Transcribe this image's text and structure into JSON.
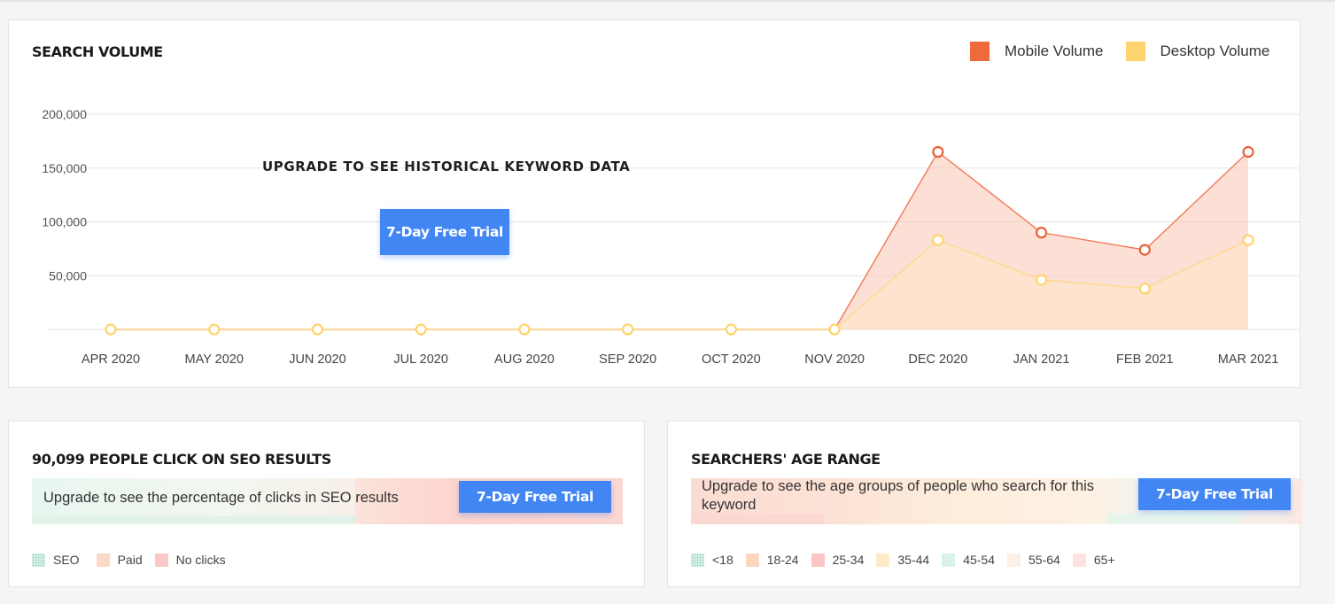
{
  "search_volume": {
    "title": "SEARCH VOLUME",
    "legend": [
      {
        "label": "Mobile Volume",
        "color": "#ee6a3c"
      },
      {
        "label": "Desktop Volume",
        "color": "#ffd36b"
      }
    ],
    "upgrade_note": "UPGRADE TO SEE HISTORICAL KEYWORD DATA",
    "trial_button": "7-Day Free Trial"
  },
  "chart_data": {
    "type": "area",
    "title": "SEARCH VOLUME",
    "categories": [
      "APR 2020",
      "MAY 2020",
      "JUN 2020",
      "JUL 2020",
      "AUG 2020",
      "SEP 2020",
      "OCT 2020",
      "NOV 2020",
      "DEC 2020",
      "JAN 2021",
      "FEB 2021",
      "MAR 2021"
    ],
    "series": [
      {
        "name": "Mobile Volume",
        "color": "#ee6a3c",
        "values": [
          0,
          0,
          0,
          0,
          0,
          0,
          0,
          0,
          165000,
          90000,
          74000,
          165000
        ]
      },
      {
        "name": "Desktop Volume",
        "color": "#ffd36b",
        "values": [
          0,
          0,
          0,
          0,
          0,
          0,
          0,
          0,
          83000,
          46000,
          38000,
          83000
        ]
      }
    ],
    "y_ticks": [
      "200,000",
      "150,000",
      "100,000",
      "50,000"
    ],
    "ylim": [
      0,
      200000
    ],
    "grid": true,
    "legend_position": "top-right"
  },
  "clicks": {
    "title": "90,099 PEOPLE CLICK ON SEO RESULTS",
    "message": "Upgrade to see the percentage of clicks in SEO results",
    "trial_button": "7-Day Free Trial",
    "legend": [
      {
        "label": "SEO",
        "color": "#b6e6d6",
        "icon": "dotted-square-icon"
      },
      {
        "label": "Paid",
        "color": "#fcd9c7"
      },
      {
        "label": "No clicks",
        "color": "#fbc8c8"
      }
    ]
  },
  "age": {
    "title": "SEARCHERS' AGE RANGE",
    "message": "Upgrade to see the age groups of people who search for this keyword",
    "trial_button": "7-Day Free Trial",
    "legend": [
      {
        "label": "<18",
        "color": "#b6e6d6",
        "icon": "dotted-square-icon"
      },
      {
        "label": "18-24",
        "color": "#fcd6bf"
      },
      {
        "label": "25-34",
        "color": "#fbc6c4"
      },
      {
        "label": "35-44",
        "color": "#fcebc9"
      },
      {
        "label": "45-54",
        "color": "#d9f3ea"
      },
      {
        "label": "55-64",
        "color": "#fdf0e8"
      },
      {
        "label": "65+",
        "color": "#fde3df"
      }
    ]
  }
}
